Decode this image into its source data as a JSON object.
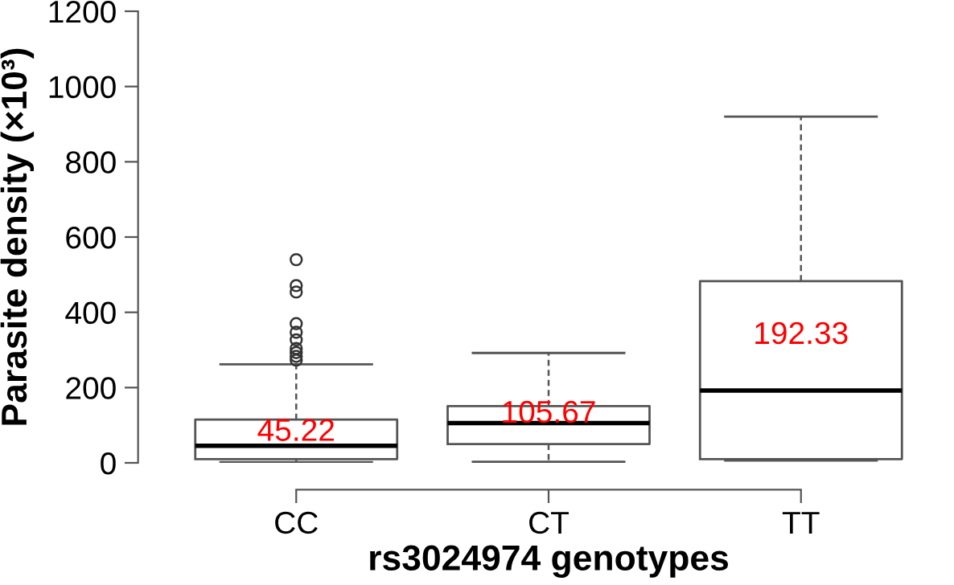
{
  "chart_data": {
    "type": "box",
    "xlabel": "rs3024974 genotypes",
    "ylabel": "Parasite density (×10³)",
    "categories": [
      "CC",
      "CT",
      "TT"
    ],
    "boxes": [
      {
        "low": 2,
        "q1": 10,
        "median": 45.22,
        "q3": 115,
        "high": 262,
        "outliers": [
          540,
          471,
          454,
          370,
          347,
          327,
          304,
          293,
          283,
          273
        ]
      },
      {
        "low": 3,
        "q1": 50,
        "median": 105.67,
        "q3": 151,
        "high": 292
      },
      {
        "low": 6,
        "q1": 10,
        "median": 192.33,
        "q3": 483,
        "high": 920
      }
    ],
    "ylim": [
      0,
      1200
    ],
    "yticks": [
      0,
      200,
      400,
      600,
      800,
      1000,
      1200
    ],
    "annotations": [
      "45.22",
      "105.67",
      "192.33"
    ],
    "grid": false,
    "legend": false
  }
}
